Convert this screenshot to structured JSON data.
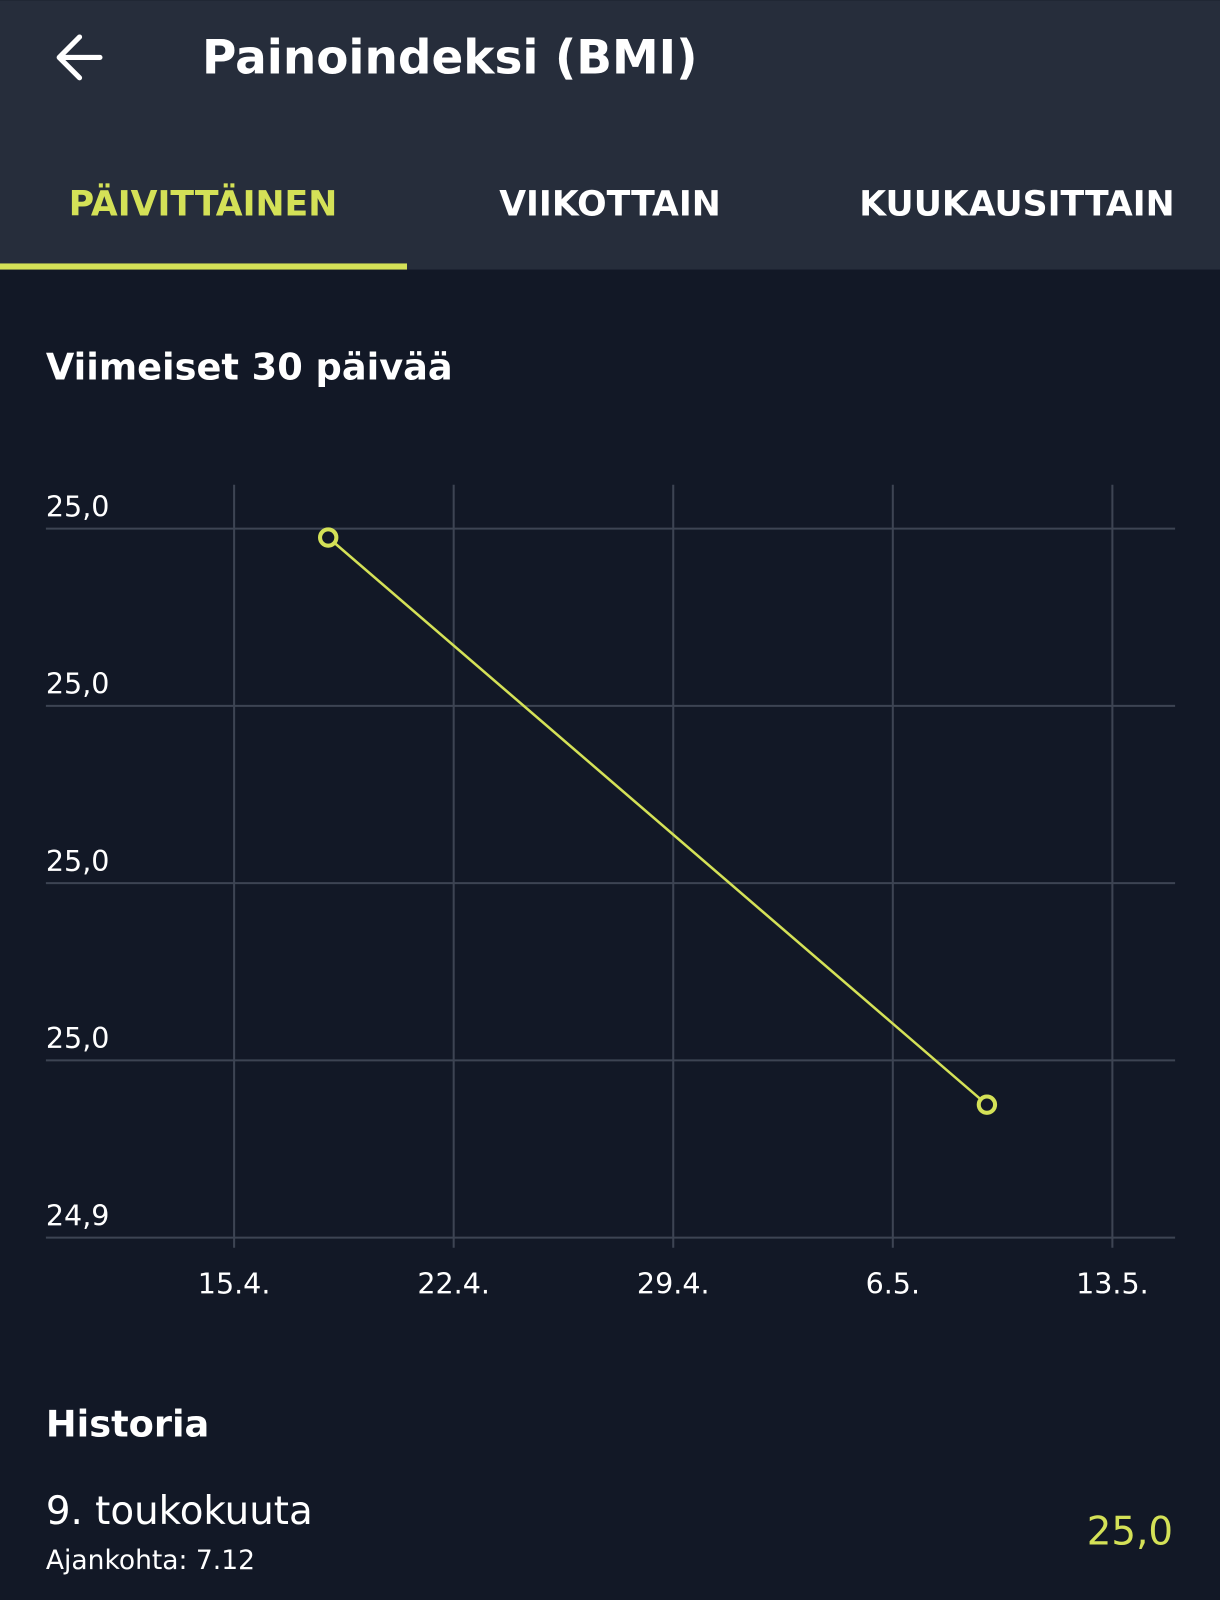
{
  "header": {
    "title": "Painoindeksi (BMI)"
  },
  "tabs": [
    "PÄIVITTÄINEN",
    "VIIKOTTAIN",
    "KUUKAUSITTAIN"
  ],
  "chart_data": {
    "type": "line",
    "title": "Viimeiset 30 päivää",
    "x": [
      "04-18",
      "05-09"
    ],
    "values": [
      25.019,
      24.955
    ],
    "color": "#d4e157",
    "xlim": [
      "04-09",
      "05-15"
    ],
    "xticks": [
      {
        "value": "04-15",
        "label": "15.4."
      },
      {
        "value": "04-22",
        "label": "22.4."
      },
      {
        "value": "04-29",
        "label": "29.4."
      },
      {
        "value": "05-06",
        "label": "6.5."
      },
      {
        "value": "05-13",
        "label": "13.5."
      }
    ],
    "ylim": [
      24.94,
      25.025
    ],
    "yticks": [
      {
        "value": 24.94,
        "label": "24,9"
      },
      {
        "value": 24.96,
        "label": "25,0"
      },
      {
        "value": 24.98,
        "label": "25,0"
      },
      {
        "value": 25.0,
        "label": "25,0"
      },
      {
        "value": 25.02,
        "label": "25,0"
      }
    ],
    "grid": true
  },
  "history": {
    "title": "Historia",
    "items": [
      {
        "date": "9. toukokuuta",
        "time": "Ajankohta: 7.12",
        "value": "25,0"
      }
    ]
  }
}
